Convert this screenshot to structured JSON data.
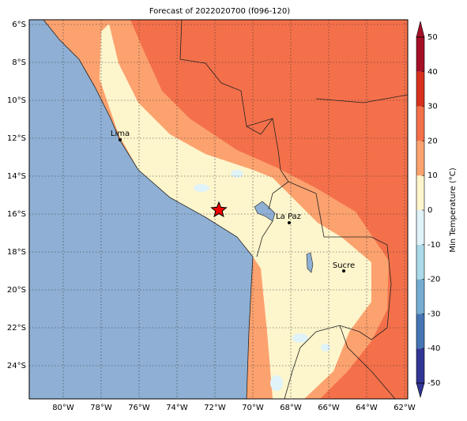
{
  "title": "Forecast of 2022020700 (f096-120)",
  "map": {
    "lat_labels": [
      "6°S",
      "8°S",
      "10°S",
      "12°S",
      "14°S",
      "16°S",
      "18°S",
      "20°S",
      "22°S",
      "24°S"
    ],
    "lon_labels": [
      "80°W",
      "78°W",
      "76°W",
      "74°W",
      "72°W",
      "70°W",
      "68°W",
      "66°W",
      "64°W",
      "62°W"
    ]
  },
  "cities": [
    {
      "name": "Lima"
    },
    {
      "name": "La Paz"
    },
    {
      "name": "Sucre"
    }
  ],
  "colorbar": {
    "label": "Min Temperature (°C)",
    "lim": [
      -50,
      50
    ],
    "ticks": [
      50,
      40,
      30,
      20,
      10,
      0,
      -10,
      -20,
      -30,
      -40,
      -50
    ],
    "colors": [
      "#313695",
      "#4575b4",
      "#74add1",
      "#abd9e9",
      "#e0f3f8",
      "#fdf5cc",
      "#fca26f",
      "#f4704a",
      "#d7301f",
      "#a50f26"
    ]
  }
}
